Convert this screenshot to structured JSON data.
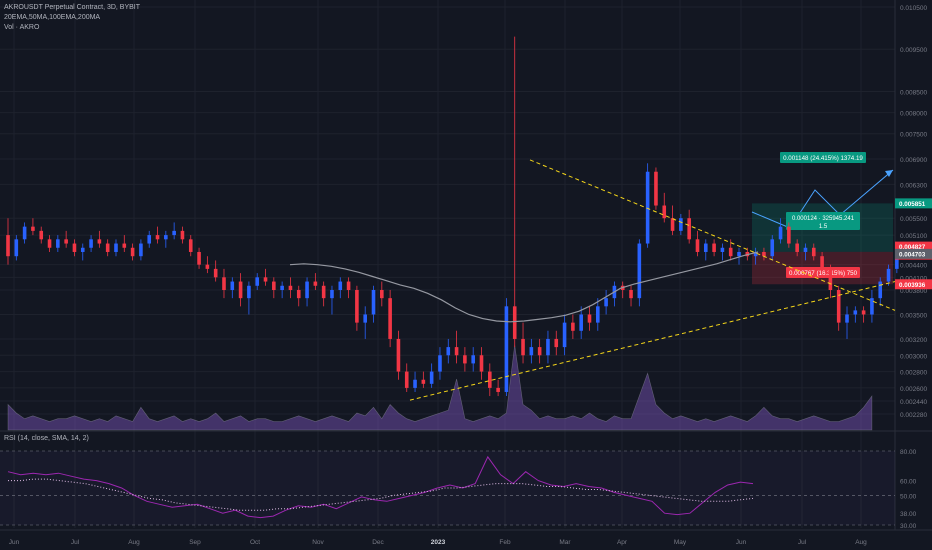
{
  "legend": {
    "title": "AKROUSDT Perpetual Contract, 3D, BYBIT",
    "ma_line": "20EMA,50MA,100EMA,200MA",
    "vol_line": "Vol · AKRO"
  },
  "rsi_title": "RSI (14, close, SMA, 14, 2)",
  "chart_data": {
    "type": "candlestick",
    "title": "AKROUSDT Perpetual Contract, 3D, BYBIT",
    "x_tick_labels": [
      "Jun",
      "Jul",
      "Aug",
      "Sep",
      "Oct",
      "Nov",
      "Dec",
      "2023",
      "Feb",
      "Mar",
      "Apr",
      "May",
      "Jun",
      "Jul",
      "Aug"
    ],
    "y_ticks": [
      "0.010500",
      "0.009500",
      "0.008500",
      "0.008000",
      "0.007500",
      "0.006900",
      "0.006300",
      "0.005500",
      "0.005100",
      "0.004400",
      "0.004100",
      "0.003800",
      "0.003500",
      "0.003200",
      "0.003000",
      "0.002800",
      "0.002600",
      "0.002440",
      "0.002280"
    ],
    "price_labels": [
      {
        "text": "0.005851",
        "color": "#089981"
      },
      {
        "text": "0.004827",
        "color": "#f23645"
      },
      {
        "text": "2d 14h",
        "color": "#f23645"
      },
      {
        "text": "0.004703",
        "color": "#5d606b"
      },
      {
        "text": "0.003936",
        "color": "#f23645"
      }
    ],
    "rsi_ticks": [
      "80.00",
      "60.00",
      "50.00",
      "38.00",
      "30.00"
    ],
    "position_tool": {
      "target_label": "0.001148 (24.415%) 1374.19",
      "center_label_1": "0.000124 · 325945.241",
      "center_label_2": "1.5",
      "stop_label": "0.000767 (16.315%) 750"
    },
    "colors": {
      "up": "#2962ff",
      "down": "#f23645",
      "ma": "#9598a1",
      "trend": "#f5d61a",
      "rsi": "#9c27b0"
    },
    "series": [
      {
        "name": "candles",
        "ohlc": [
          [
            0.0051,
            0.0055,
            0.0044,
            0.0046
          ],
          [
            0.0046,
            0.0051,
            0.0045,
            0.005
          ],
          [
            0.005,
            0.0054,
            0.0049,
            0.0053
          ],
          [
            0.0053,
            0.0055,
            0.0051,
            0.0052
          ],
          [
            0.0052,
            0.0053,
            0.0049,
            0.005
          ],
          [
            0.005,
            0.0051,
            0.0047,
            0.0048
          ],
          [
            0.0048,
            0.0051,
            0.0047,
            0.005
          ],
          [
            0.005,
            0.0052,
            0.0048,
            0.0049
          ],
          [
            0.0049,
            0.005,
            0.0046,
            0.0047
          ],
          [
            0.0047,
            0.0049,
            0.0045,
            0.0048
          ],
          [
            0.0048,
            0.0051,
            0.0047,
            0.005
          ],
          [
            0.005,
            0.0052,
            0.0048,
            0.0049
          ],
          [
            0.0049,
            0.005,
            0.0046,
            0.0047
          ],
          [
            0.0047,
            0.005,
            0.0046,
            0.0049
          ],
          [
            0.0049,
            0.0051,
            0.0047,
            0.0048
          ],
          [
            0.0048,
            0.0049,
            0.0045,
            0.0046
          ],
          [
            0.0046,
            0.005,
            0.0045,
            0.0049
          ],
          [
            0.0049,
            0.0052,
            0.0048,
            0.0051
          ],
          [
            0.0051,
            0.0053,
            0.0049,
            0.005
          ],
          [
            0.005,
            0.0052,
            0.0048,
            0.0051
          ],
          [
            0.0051,
            0.0054,
            0.005,
            0.0052
          ],
          [
            0.0052,
            0.0053,
            0.0049,
            0.005
          ],
          [
            0.005,
            0.0051,
            0.0046,
            0.0047
          ],
          [
            0.0047,
            0.0048,
            0.0043,
            0.0044
          ],
          [
            0.0044,
            0.0046,
            0.0042,
            0.0043
          ],
          [
            0.0043,
            0.0045,
            0.004,
            0.0041
          ],
          [
            0.0041,
            0.0043,
            0.0037,
            0.0038
          ],
          [
            0.0038,
            0.0041,
            0.0037,
            0.004
          ],
          [
            0.004,
            0.0042,
            0.0036,
            0.0037
          ],
          [
            0.0037,
            0.004,
            0.0035,
            0.0039
          ],
          [
            0.0039,
            0.0042,
            0.0038,
            0.0041
          ],
          [
            0.0041,
            0.0043,
            0.0039,
            0.004
          ],
          [
            0.004,
            0.0041,
            0.0037,
            0.0038
          ],
          [
            0.0038,
            0.004,
            0.0037,
            0.0039
          ],
          [
            0.0039,
            0.0041,
            0.0037,
            0.0038
          ],
          [
            0.0038,
            0.0039,
            0.0036,
            0.0037
          ],
          [
            0.0037,
            0.0041,
            0.0036,
            0.004
          ],
          [
            0.004,
            0.0042,
            0.0038,
            0.0039
          ],
          [
            0.0039,
            0.004,
            0.0036,
            0.0037
          ],
          [
            0.0037,
            0.0039,
            0.0035,
            0.0038
          ],
          [
            0.0038,
            0.0041,
            0.0037,
            0.004
          ],
          [
            0.004,
            0.0041,
            0.0037,
            0.0038
          ],
          [
            0.0038,
            0.0039,
            0.0033,
            0.0034
          ],
          [
            0.0034,
            0.0036,
            0.0032,
            0.0035
          ],
          [
            0.0035,
            0.0039,
            0.0034,
            0.0038
          ],
          [
            0.0038,
            0.004,
            0.0036,
            0.0037
          ],
          [
            0.0037,
            0.0038,
            0.0031,
            0.0032
          ],
          [
            0.0032,
            0.0033,
            0.0027,
            0.0028
          ],
          [
            0.0028,
            0.0029,
            0.00255,
            0.0026
          ],
          [
            0.0026,
            0.0028,
            0.00255,
            0.0027
          ],
          [
            0.0027,
            0.0028,
            0.0026,
            0.00265
          ],
          [
            0.00265,
            0.0029,
            0.0026,
            0.0028
          ],
          [
            0.0028,
            0.0031,
            0.0027,
            0.003
          ],
          [
            0.003,
            0.0032,
            0.0029,
            0.0031
          ],
          [
            0.0031,
            0.0033,
            0.0029,
            0.003
          ],
          [
            0.003,
            0.0031,
            0.0028,
            0.0029
          ],
          [
            0.0029,
            0.0031,
            0.0028,
            0.003
          ],
          [
            0.003,
            0.0031,
            0.0027,
            0.0028
          ],
          [
            0.0028,
            0.0029,
            0.0025,
            0.0026
          ],
          [
            0.0026,
            0.0027,
            0.0025,
            0.00255
          ],
          [
            0.00255,
            0.0037,
            0.0025,
            0.0036
          ],
          [
            0.0036,
            0.0098,
            0.0031,
            0.0032
          ],
          [
            0.0032,
            0.0034,
            0.0029,
            0.003
          ],
          [
            0.003,
            0.0032,
            0.0029,
            0.0031
          ],
          [
            0.0031,
            0.0032,
            0.0029,
            0.003
          ],
          [
            0.003,
            0.0033,
            0.0029,
            0.0032
          ],
          [
            0.0032,
            0.0033,
            0.003,
            0.0031
          ],
          [
            0.0031,
            0.0035,
            0.003,
            0.0034
          ],
          [
            0.0034,
            0.0035,
            0.0032,
            0.0033
          ],
          [
            0.0033,
            0.0036,
            0.0032,
            0.0035
          ],
          [
            0.0035,
            0.0036,
            0.0033,
            0.0034
          ],
          [
            0.0034,
            0.0037,
            0.0033,
            0.0036
          ],
          [
            0.0036,
            0.0038,
            0.0035,
            0.0037
          ],
          [
            0.0037,
            0.004,
            0.0036,
            0.0039
          ],
          [
            0.0039,
            0.004,
            0.0037,
            0.0038
          ],
          [
            0.0038,
            0.0039,
            0.0036,
            0.0037
          ],
          [
            0.0037,
            0.005,
            0.0036,
            0.0049
          ],
          [
            0.0049,
            0.0068,
            0.0048,
            0.0066
          ],
          [
            0.0066,
            0.0067,
            0.0057,
            0.0058
          ],
          [
            0.0058,
            0.0061,
            0.0054,
            0.0055
          ],
          [
            0.0055,
            0.0058,
            0.0051,
            0.0052
          ],
          [
            0.0052,
            0.0056,
            0.0051,
            0.0055
          ],
          [
            0.0055,
            0.0057,
            0.0049,
            0.005
          ],
          [
            0.005,
            0.0052,
            0.0046,
            0.0047
          ],
          [
            0.0047,
            0.005,
            0.0045,
            0.0049
          ],
          [
            0.0049,
            0.005,
            0.0046,
            0.0047
          ],
          [
            0.0047,
            0.0049,
            0.0045,
            0.0048
          ],
          [
            0.0048,
            0.005,
            0.0045,
            0.0046
          ],
          [
            0.0046,
            0.0048,
            0.0044,
            0.0047
          ],
          [
            0.0047,
            0.0048,
            0.0045,
            0.0046
          ],
          [
            0.0046,
            0.0048,
            0.0044,
            0.0047
          ],
          [
            0.0047,
            0.0048,
            0.0045,
            0.0046
          ],
          [
            0.0046,
            0.0051,
            0.0045,
            0.005
          ],
          [
            0.005,
            0.0055,
            0.0049,
            0.0053
          ],
          [
            0.0053,
            0.0054,
            0.0048,
            0.0049
          ],
          [
            0.0049,
            0.005,
            0.0046,
            0.0047
          ],
          [
            0.0047,
            0.0049,
            0.0045,
            0.0048
          ],
          [
            0.0048,
            0.0049,
            0.0045,
            0.0046
          ],
          [
            0.0046,
            0.0047,
            0.0042,
            0.0043
          ],
          [
            0.0043,
            0.0044,
            0.0037,
            0.0038
          ],
          [
            0.0038,
            0.0039,
            0.0033,
            0.0034
          ],
          [
            0.0034,
            0.0036,
            0.0032,
            0.0035
          ],
          [
            0.0035,
            0.0036,
            0.0034,
            0.00355
          ],
          [
            0.00355,
            0.0036,
            0.0034,
            0.0035
          ],
          [
            0.0035,
            0.0038,
            0.0034,
            0.0037
          ],
          [
            0.0037,
            0.0041,
            0.0036,
            0.004
          ],
          [
            0.004,
            0.0044,
            0.0039,
            0.0043
          ],
          [
            0.0043,
            0.0048,
            0.0042,
            0.0047
          ]
        ]
      },
      {
        "name": "MA",
        "values": [
          0.0044,
          0.00442,
          0.0044,
          0.00436,
          0.0043,
          0.00422,
          0.00412,
          0.00402,
          0.00392,
          0.00384,
          0.00376,
          0.00368,
          0.00358,
          0.0035,
          0.00345,
          0.00342,
          0.00341,
          0.00342,
          0.00344,
          0.00346,
          0.00349,
          0.00354,
          0.00362,
          0.00372,
          0.00384,
          0.00394,
          0.00402,
          0.0041,
          0.00418,
          0.00426,
          0.00434,
          0.00442,
          0.00452,
          0.00462,
          0.0047
        ]
      },
      {
        "name": "RSI",
        "values": [
          66,
          64,
          65,
          64,
          65,
          63,
          61,
          60,
          58,
          55,
          50,
          46,
          44,
          42,
          43,
          44,
          41,
          38,
          40,
          36,
          35,
          36,
          40,
          43,
          42,
          44,
          41,
          45,
          49,
          47,
          46,
          48,
          50,
          52,
          55,
          57,
          55,
          58,
          76,
          64,
          58,
          66,
          60,
          57,
          56,
          58,
          56,
          55,
          52,
          50,
          48,
          46,
          38,
          37,
          38,
          45,
          52,
          57,
          59,
          58
        ]
      },
      {
        "name": "RSI-MA",
        "values": [
          60,
          60,
          61,
          61,
          60,
          59,
          58,
          56,
          54,
          52,
          50,
          48,
          47,
          45,
          44,
          43,
          42,
          41,
          40,
          40,
          40,
          41,
          41,
          42,
          43,
          44,
          45,
          46,
          47,
          48,
          50,
          51,
          52,
          53,
          55,
          55,
          56,
          57,
          58,
          58,
          58,
          57,
          56,
          56,
          55,
          54,
          54,
          53,
          52,
          51,
          50,
          49,
          48,
          47,
          46,
          46,
          46,
          47,
          48
        ]
      }
    ],
    "volume": [
      9,
      6,
      4,
      5,
      4,
      3,
      4,
      4,
      5,
      4,
      3,
      4,
      3,
      5,
      4,
      3,
      8,
      4,
      3,
      4,
      5,
      3,
      4,
      3,
      4,
      6,
      3,
      4,
      5,
      3,
      4,
      4,
      3,
      3,
      4,
      5,
      4,
      3,
      4,
      5,
      4,
      3,
      6,
      5,
      8,
      4,
      9,
      6,
      4,
      3,
      4,
      5,
      6,
      7,
      18,
      4,
      3,
      4,
      5,
      4,
      6,
      30,
      9,
      7,
      4,
      5,
      4,
      4,
      5,
      4,
      6,
      4,
      3,
      5,
      4,
      4,
      12,
      20,
      9,
      6,
      4,
      5,
      4,
      3,
      4,
      3,
      4,
      5,
      4,
      3,
      5,
      8,
      5,
      4,
      4,
      3,
      4,
      5,
      4,
      3,
      3,
      4,
      5,
      8,
      12
    ],
    "trend_lines": [
      {
        "name": "upper",
        "from": {
          "t": 78,
          "p": 0.00688
        },
        "to": {
          "t": 150,
          "p": 0.00355
        }
      },
      {
        "name": "lower",
        "from": {
          "t": 60,
          "p": 0.00245
        },
        "to": {
          "t": 150,
          "p": 0.004
        }
      }
    ]
  }
}
